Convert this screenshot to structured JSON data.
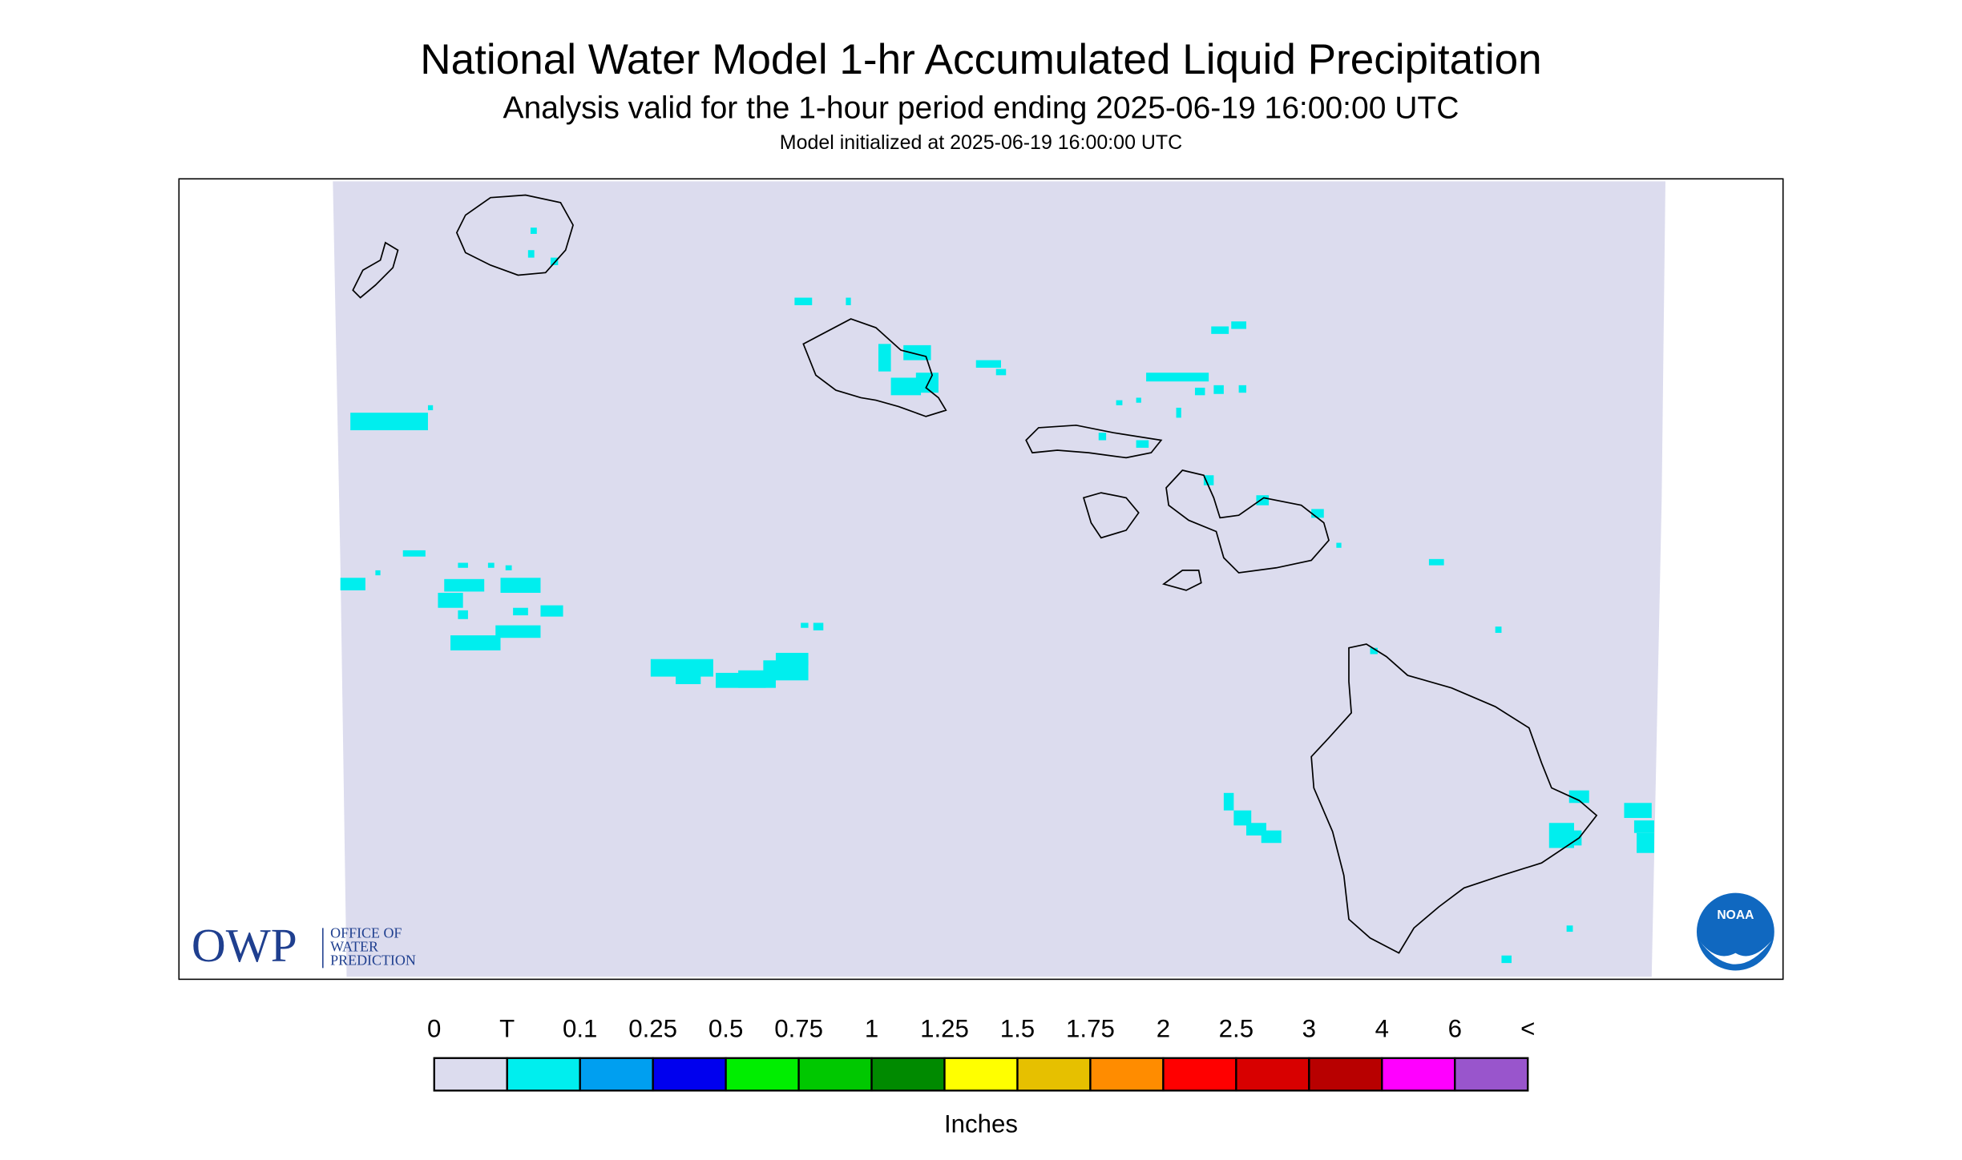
{
  "header": {
    "title": "National Water Model 1-hr Accumulated Liquid Precipitation",
    "subtitle": "Analysis valid for the 1-hour period ending 2025-06-19 16:00:00 UTC",
    "init": "Model initialized at 2025-06-19 16:00:00 UTC"
  },
  "legend": {
    "labels": [
      "0",
      "T",
      "0.1",
      "0.25",
      "0.5",
      "0.75",
      "1",
      "1.25",
      "1.5",
      "1.75",
      "2",
      "2.5",
      "3",
      "4",
      "6",
      "<"
    ],
    "colors": [
      "#dcdcee",
      "#00eeee",
      "#009ff0",
      "#0000ee",
      "#00ee00",
      "#00c800",
      "#008a00",
      "#ffff00",
      "#e6c000",
      "#ff8c00",
      "#ff0000",
      "#d80000",
      "#b80000",
      "#ff00ff",
      "#9955cc"
    ],
    "unit": "Inches"
  },
  "logos": {
    "owp": "OWP",
    "owp_name": [
      "OFFICE OF",
      "WATER",
      "PREDICTION"
    ],
    "noaa": "NOAA"
  }
}
